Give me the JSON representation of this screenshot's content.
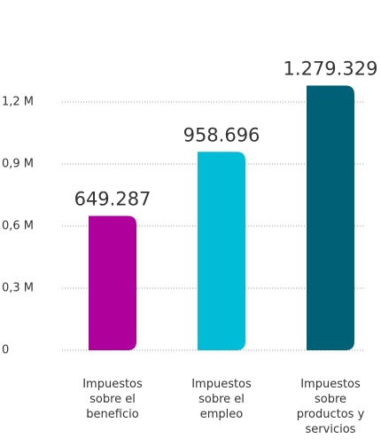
{
  "chart_data": {
    "type": "bar",
    "categories": [
      "Impuestos sobre el beneficio",
      "Impuestos sobre el empleo",
      "Impuestos sobre productos y servicios"
    ],
    "values": [
      649287,
      958696,
      1279329
    ],
    "value_labels": [
      "649.287",
      "958.696",
      "1.279.329"
    ],
    "colors": [
      "#b0009c",
      "#00bcd6",
      "#006176"
    ],
    "ylim": [
      0,
      1200000
    ],
    "yticks": [
      {
        "value": 0,
        "label": "0"
      },
      {
        "value": 300000,
        "label": "0,3 M"
      },
      {
        "value": 600000,
        "label": "0,6 M"
      },
      {
        "value": 900000,
        "label": "0,9 M"
      },
      {
        "value": 1200000,
        "label": "1,2 M"
      }
    ],
    "grid": true
  }
}
